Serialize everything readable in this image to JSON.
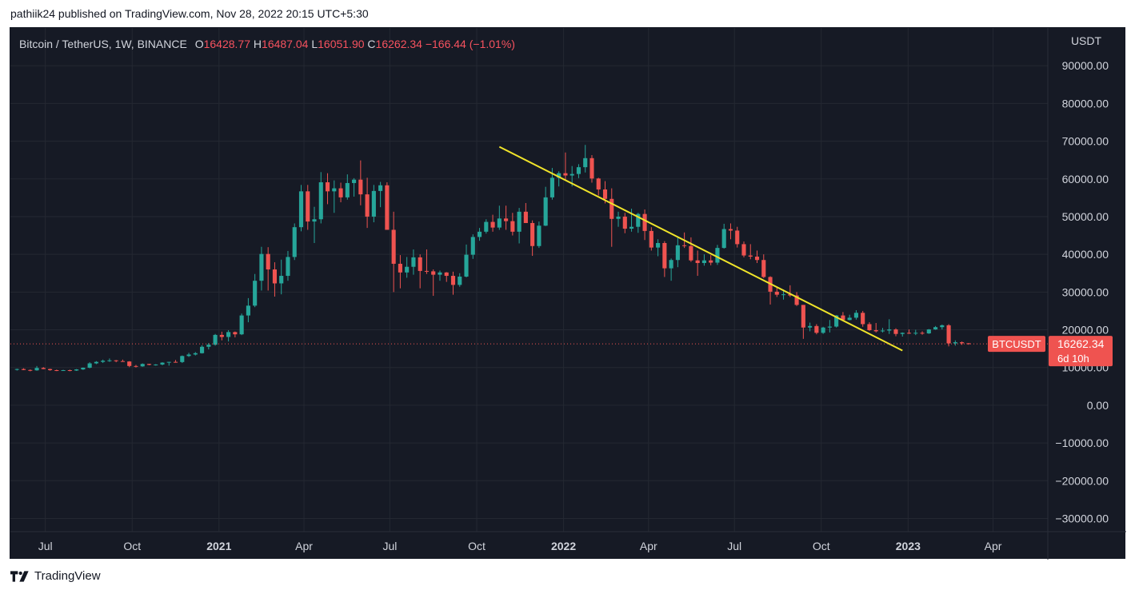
{
  "published_line": "pathiik24 published on TradingView.com, Nov 28, 2022 20:15 UTC+5:30",
  "legend": {
    "symbol": "Bitcoin / TetherUS, 1W, BINANCE",
    "open_label": "O",
    "open": "16428.77",
    "high_label": "H",
    "high": "16487.04",
    "low_label": "L",
    "low": "16051.90",
    "close_label": "C",
    "close": "16262.34",
    "change": "−166.44 (−1.01%)"
  },
  "price_badge": {
    "symbol": "BTCUSDT",
    "price": "16262.34",
    "countdown": "6d 10h"
  },
  "footer": {
    "brand": "TradingView"
  },
  "colors": {
    "background": "#161a25",
    "up": "#26a69a",
    "down": "#ef5350",
    "trendline": "#f0e42a",
    "grid": "#242832",
    "axis_text": "#d1d4dc"
  },
  "chart_data": {
    "type": "candlestick",
    "interval": "1W",
    "currency_label": "USDT",
    "y_ticks": [
      "90000.00",
      "80000.00",
      "70000.00",
      "60000.00",
      "50000.00",
      "40000.00",
      "30000.00",
      "20000.00",
      "10000.00",
      "0.00",
      "−10000.00",
      "−20000.00",
      "−30000.00"
    ],
    "y_tick_values": [
      90000,
      80000,
      70000,
      60000,
      50000,
      40000,
      30000,
      20000,
      10000,
      0,
      -10000,
      -20000,
      -30000
    ],
    "ylim": [
      -33500,
      100000
    ],
    "x_start": "2020-05-25",
    "x_end": "2023-05-29",
    "x_ticks": [
      {
        "label": "Jul",
        "date": "2020-07-01",
        "bold": false
      },
      {
        "label": "Oct",
        "date": "2020-10-01",
        "bold": false
      },
      {
        "label": "2021",
        "date": "2021-01-01",
        "bold": true
      },
      {
        "label": "Apr",
        "date": "2021-04-01",
        "bold": false
      },
      {
        "label": "Jul",
        "date": "2021-07-01",
        "bold": false
      },
      {
        "label": "Oct",
        "date": "2021-10-01",
        "bold": false
      },
      {
        "label": "2022",
        "date": "2022-01-01",
        "bold": true
      },
      {
        "label": "Apr",
        "date": "2022-04-01",
        "bold": false
      },
      {
        "label": "Jul",
        "date": "2022-07-01",
        "bold": false
      },
      {
        "label": "Oct",
        "date": "2022-10-01",
        "bold": false
      },
      {
        "label": "2023",
        "date": "2023-01-01",
        "bold": true
      },
      {
        "label": "Apr",
        "date": "2023-04-01",
        "bold": false
      }
    ],
    "first_candle_date": "2020-06-01",
    "candles": [
      [
        9450,
        9700,
        9200,
        9600
      ],
      [
        9600,
        9800,
        9300,
        9350
      ],
      [
        9350,
        9500,
        9000,
        9250
      ],
      [
        9250,
        10400,
        9150,
        9900
      ],
      [
        9900,
        10100,
        9550,
        9600
      ],
      [
        9600,
        9700,
        9150,
        9300
      ],
      [
        9300,
        9450,
        9050,
        9200
      ],
      [
        9200,
        9400,
        9100,
        9300
      ],
      [
        9300,
        9450,
        9000,
        9200
      ],
      [
        9200,
        9600,
        9100,
        9500
      ],
      [
        9500,
        10000,
        9350,
        9950
      ],
      [
        9950,
        11400,
        9800,
        11100
      ],
      [
        11100,
        11700,
        10900,
        11500
      ],
      [
        11500,
        12100,
        11200,
        11800
      ],
      [
        11800,
        12400,
        11500,
        11900
      ],
      [
        11900,
        12000,
        11400,
        11700
      ],
      [
        11700,
        12100,
        11550,
        11600
      ],
      [
        11600,
        11700,
        10100,
        10400
      ],
      [
        10400,
        10700,
        10000,
        10300
      ],
      [
        10300,
        11100,
        10200,
        10950
      ],
      [
        10950,
        11000,
        10600,
        10700
      ],
      [
        10700,
        10900,
        10500,
        10800
      ],
      [
        10800,
        11400,
        10600,
        11300
      ],
      [
        11300,
        11500,
        10500,
        11500
      ],
      [
        11500,
        12000,
        11300,
        11450
      ],
      [
        11450,
        13200,
        11200,
        13050
      ],
      [
        13050,
        13900,
        12800,
        13450
      ],
      [
        13450,
        14100,
        13200,
        13800
      ],
      [
        13800,
        15900,
        13700,
        15500
      ],
      [
        15500,
        16500,
        14800,
        16050
      ],
      [
        16050,
        18900,
        15800,
        18650
      ],
      [
        18650,
        19500,
        17200,
        18100
      ],
      [
        18100,
        19900,
        16900,
        19400
      ],
      [
        19400,
        19550,
        18000,
        18800
      ],
      [
        18800,
        24300,
        18600,
        23800
      ],
      [
        23800,
        28400,
        22000,
        26400
      ],
      [
        26400,
        34800,
        26000,
        33000
      ],
      [
        33000,
        42000,
        30400,
        40100
      ],
      [
        40100,
        41900,
        30400,
        36000
      ],
      [
        36000,
        37900,
        28800,
        32300
      ],
      [
        32300,
        38600,
        29400,
        34300
      ],
      [
        34300,
        40900,
        33000,
        39300
      ],
      [
        39300,
        48200,
        38500,
        47200
      ],
      [
        47200,
        58400,
        46100,
        56700
      ],
      [
        56700,
        58400,
        46500,
        48700
      ],
      [
        48700,
        52600,
        43000,
        49300
      ],
      [
        49300,
        61800,
        48200,
        59100
      ],
      [
        59100,
        61500,
        53300,
        56700
      ],
      [
        56700,
        59600,
        51000,
        57500
      ],
      [
        57500,
        59000,
        53800,
        55100
      ],
      [
        55100,
        61200,
        54500,
        58900
      ],
      [
        58900,
        60200,
        55300,
        59800
      ],
      [
        59800,
        64900,
        53000,
        55900
      ],
      [
        55900,
        60300,
        47000,
        50000
      ],
      [
        50000,
        58400,
        48500,
        56800
      ],
      [
        56800,
        59200,
        52500,
        58300
      ],
      [
        58300,
        59100,
        46900,
        46500
      ],
      [
        46500,
        51300,
        30000,
        37500
      ],
      [
        37500,
        39800,
        31000,
        35200
      ],
      [
        35200,
        39300,
        33800,
        36700
      ],
      [
        36700,
        41300,
        34600,
        39200
      ],
      [
        39200,
        40000,
        31000,
        35600
      ],
      [
        35600,
        41300,
        34800,
        35500
      ],
      [
        35500,
        36000,
        29000,
        34600
      ],
      [
        34600,
        35700,
        33000,
        35200
      ],
      [
        35200,
        35300,
        32700,
        34300
      ],
      [
        34300,
        35400,
        29300,
        31900
      ],
      [
        31900,
        35000,
        31400,
        34100
      ],
      [
        34100,
        42600,
        33900,
        39900
      ],
      [
        39900,
        45300,
        38800,
        44600
      ],
      [
        44600,
        47000,
        43600,
        46000
      ],
      [
        46000,
        49300,
        45500,
        48600
      ],
      [
        48600,
        50500,
        46000,
        47100
      ],
      [
        47100,
        52900,
        46500,
        49500
      ],
      [
        49500,
        52900,
        46500,
        48800
      ],
      [
        48800,
        51000,
        45000,
        46000
      ],
      [
        46000,
        52300,
        42900,
        51300
      ],
      [
        51300,
        53600,
        48600,
        48300
      ],
      [
        48300,
        49000,
        39600,
        42200
      ],
      [
        42200,
        48700,
        41700,
        47600
      ],
      [
        47600,
        57900,
        47500,
        55100
      ],
      [
        55100,
        62900,
        54500,
        60300
      ],
      [
        60300,
        62000,
        58000,
        61500
      ],
      [
        61500,
        67000,
        59600,
        60900
      ],
      [
        60900,
        63400,
        58000,
        61300
      ],
      [
        61300,
        63900,
        60200,
        63100
      ],
      [
        63100,
        69000,
        61700,
        65500
      ],
      [
        65500,
        66300,
        59000,
        60100
      ],
      [
        60100,
        60300,
        55600,
        57200
      ],
      [
        57200,
        59400,
        53500,
        54700
      ],
      [
        54700,
        57500,
        42000,
        49400
      ],
      [
        49400,
        51300,
        47300,
        50000
      ],
      [
        50000,
        51000,
        45600,
        46800
      ],
      [
        46800,
        52100,
        46000,
        47300
      ],
      [
        47300,
        51000,
        45700,
        50700
      ],
      [
        50700,
        51900,
        43800,
        46200
      ],
      [
        46200,
        47200,
        41000,
        41800
      ],
      [
        41800,
        44000,
        39500,
        43000
      ],
      [
        43000,
        43500,
        34000,
        36300
      ],
      [
        36300,
        38900,
        33000,
        38500
      ],
      [
        38500,
        44500,
        36600,
        42400
      ],
      [
        42400,
        45800,
        41700,
        42200
      ],
      [
        42200,
        44500,
        38000,
        38400
      ],
      [
        38400,
        41000,
        34300,
        37700
      ],
      [
        37700,
        40000,
        37000,
        38400
      ],
      [
        38400,
        39800,
        37100,
        37800
      ],
      [
        37800,
        42500,
        37200,
        41700
      ],
      [
        41700,
        48100,
        41500,
        46700
      ],
      [
        46700,
        48200,
        44000,
        46300
      ],
      [
        46300,
        47300,
        41800,
        42700
      ],
      [
        42700,
        43400,
        39200,
        39700
      ],
      [
        39700,
        42700,
        38700,
        39400
      ],
      [
        39400,
        41000,
        37700,
        38500
      ],
      [
        38500,
        40000,
        33700,
        34000
      ],
      [
        34000,
        34200,
        26700,
        30100
      ],
      [
        30100,
        31400,
        28700,
        29300
      ],
      [
        29300,
        30700,
        28000,
        29400
      ],
      [
        29400,
        31800,
        28700,
        29100
      ],
      [
        29100,
        30000,
        26300,
        26600
      ],
      [
        26600,
        26600,
        17600,
        20600
      ],
      [
        20600,
        21900,
        19600,
        21000
      ],
      [
        21000,
        21500,
        18800,
        19200
      ],
      [
        19200,
        20800,
        18900,
        20600
      ],
      [
        20600,
        22600,
        19300,
        20850
      ],
      [
        20850,
        23900,
        20600,
        23800
      ],
      [
        23800,
        24700,
        22400,
        22600
      ],
      [
        22600,
        24000,
        22500,
        23200
      ],
      [
        23200,
        25200,
        22700,
        24500
      ],
      [
        24500,
        25000,
        20800,
        21500
      ],
      [
        21500,
        22000,
        19700,
        19900
      ],
      [
        19900,
        21800,
        19300,
        19600
      ],
      [
        19600,
        20500,
        19300,
        19800
      ],
      [
        19800,
        22800,
        18900,
        20100
      ],
      [
        20100,
        20400,
        18300,
        18900
      ],
      [
        18900,
        19300,
        18200,
        19200
      ],
      [
        19200,
        20100,
        18900,
        19100
      ],
      [
        19100,
        20000,
        18600,
        19200
      ],
      [
        19200,
        19600,
        18700,
        19050
      ],
      [
        19050,
        20200,
        18900,
        20100
      ],
      [
        20100,
        21000,
        20000,
        20700
      ],
      [
        20700,
        21400,
        20100,
        21200
      ],
      [
        21200,
        21500,
        15600,
        16400
      ],
      [
        16400,
        17200,
        15800,
        16700
      ],
      [
        16700,
        16900,
        16000,
        16428.77
      ],
      [
        16428.77,
        16487.04,
        16051.9,
        16262.34
      ]
    ],
    "trendline": {
      "from": {
        "date": "2021-10-25",
        "value": 68500
      },
      "to": {
        "date": "2022-12-26",
        "value": 14500
      }
    },
    "last_price": 16262.34
  }
}
